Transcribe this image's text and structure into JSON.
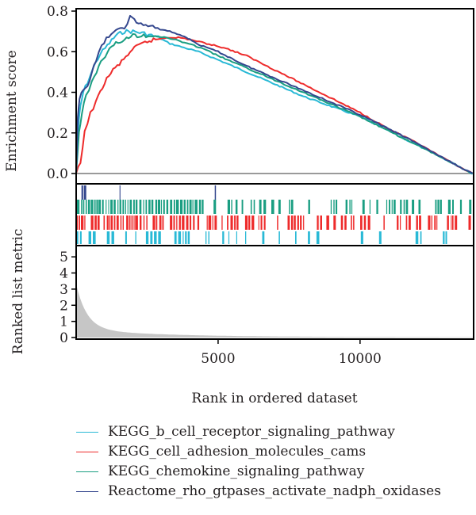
{
  "chart_data": {
    "type": "line",
    "ylabel_top": "Enrichment score",
    "ylabel_bottom": "Ranked list metric",
    "xlabel": "Rank in ordered dataset",
    "xlim": [
      0,
      14000
    ],
    "x_ticks": [
      5000,
      10000
    ],
    "top_ylim": [
      0,
      0.8
    ],
    "top_yticks": [
      "0.0",
      "0.2",
      "0.4",
      "0.6",
      "0.8"
    ],
    "bottom_ylim": [
      0,
      5.5
    ],
    "bottom_yticks": [
      "0",
      "1",
      "2",
      "3",
      "4",
      "5"
    ],
    "series": [
      {
        "name": "KEGG_b_cell_receptor_signaling_pathway",
        "color": "#29b9d6",
        "x": [
          0,
          80,
          150,
          250,
          400,
          600,
          850,
          1100,
          1400,
          1700,
          2000,
          2400,
          2900,
          3300,
          3800,
          4300,
          5000,
          6000,
          7000,
          8000,
          9000,
          10000,
          11000,
          12000,
          13000,
          13960
        ],
        "y": [
          0.0,
          0.24,
          0.33,
          0.4,
          0.45,
          0.52,
          0.59,
          0.63,
          0.68,
          0.7,
          0.7,
          0.69,
          0.67,
          0.64,
          0.62,
          0.6,
          0.56,
          0.5,
          0.44,
          0.38,
          0.33,
          0.28,
          0.21,
          0.14,
          0.07,
          0.0
        ]
      },
      {
        "name": "KEGG_cell_adhesion_molecules_cams",
        "color": "#ee2b2b",
        "x": [
          0,
          150,
          300,
          500,
          700,
          1000,
          1300,
          1600,
          1900,
          2200,
          2500,
          2800,
          3200,
          3600,
          4000,
          4600,
          5200,
          6000,
          7000,
          8000,
          9000,
          10000,
          11000,
          12000,
          13000,
          13960
        ],
        "y": [
          0.0,
          0.05,
          0.2,
          0.3,
          0.35,
          0.45,
          0.51,
          0.55,
          0.6,
          0.63,
          0.65,
          0.66,
          0.67,
          0.67,
          0.66,
          0.64,
          0.62,
          0.58,
          0.51,
          0.44,
          0.37,
          0.3,
          0.22,
          0.15,
          0.07,
          0.0
        ]
      },
      {
        "name": "KEGG_chemokine_signaling_pathway",
        "color": "#1a9e82",
        "x": [
          0,
          100,
          200,
          350,
          550,
          800,
          1100,
          1400,
          1700,
          2000,
          2300,
          2700,
          3100,
          3500,
          3900,
          4400,
          5000,
          6000,
          7000,
          8000,
          9000,
          10000,
          11000,
          12000,
          13000,
          13960
        ],
        "y": [
          0.0,
          0.2,
          0.3,
          0.38,
          0.45,
          0.53,
          0.6,
          0.64,
          0.66,
          0.68,
          0.68,
          0.68,
          0.67,
          0.66,
          0.64,
          0.62,
          0.58,
          0.52,
          0.46,
          0.4,
          0.34,
          0.28,
          0.21,
          0.14,
          0.07,
          0.0
        ]
      },
      {
        "name": "Reactome_rho_gtpases_activate_nadph_oxidases",
        "color": "#34478e",
        "x": [
          0,
          60,
          120,
          250,
          400,
          550,
          700,
          900,
          1150,
          1400,
          1700,
          1900,
          2200,
          2700,
          3300,
          3900,
          4000,
          4400,
          5000,
          6000,
          7000,
          8000,
          9000,
          10000,
          11000,
          12000,
          13000,
          13960
        ],
        "y": [
          0.0,
          0.27,
          0.37,
          0.42,
          0.43,
          0.5,
          0.55,
          0.63,
          0.68,
          0.7,
          0.72,
          0.77,
          0.74,
          0.72,
          0.7,
          0.67,
          0.66,
          0.63,
          0.6,
          0.53,
          0.47,
          0.41,
          0.35,
          0.29,
          0.22,
          0.15,
          0.07,
          0.0
        ]
      }
    ],
    "hit_rows": [
      "#34478e",
      "#1a9e82",
      "#ee2b2b",
      "#29b9d6"
    ]
  }
}
